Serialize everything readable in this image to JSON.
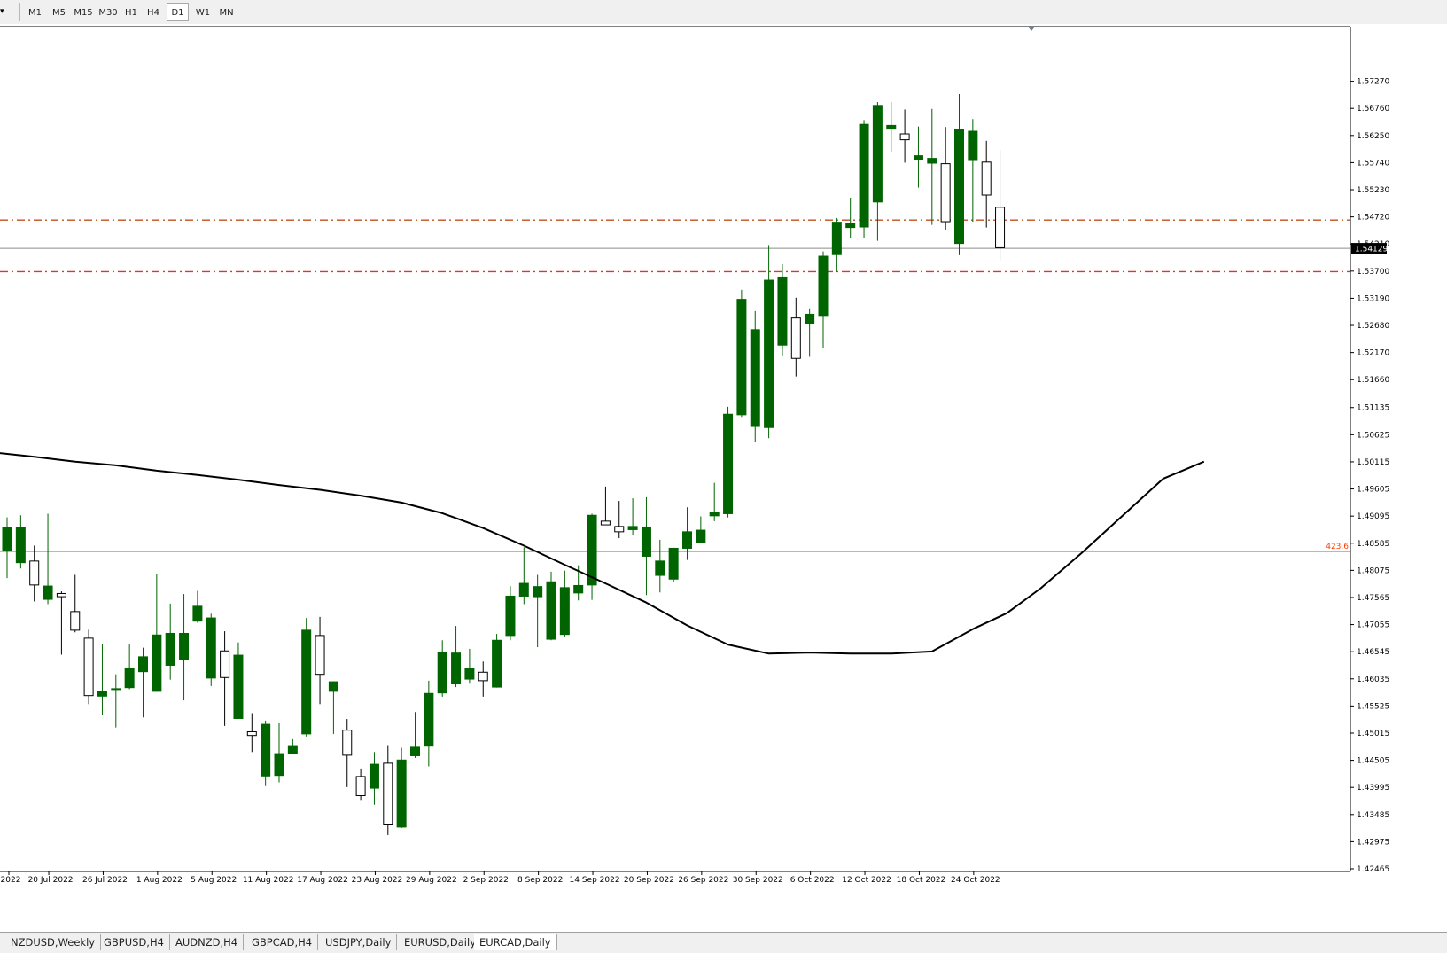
{
  "toolbar": {
    "dropdown_icon": "triangle-down-icon",
    "timeframes": [
      "M1",
      "M5",
      "M15",
      "M30",
      "H1",
      "H4",
      "D1",
      "W1",
      "MN"
    ],
    "active": "D1"
  },
  "chart_data": {
    "type": "candlestick",
    "symbol": "EURCAD",
    "timeframe": "Daily",
    "ylim": [
      1.42465,
      1.5778
    ],
    "y_ticks": [
      "1.57270",
      "1.56760",
      "1.56250",
      "1.55740",
      "1.55230",
      "1.54720",
      "1.54210",
      "1.53700",
      "1.53190",
      "1.52680",
      "1.52170",
      "1.51660",
      "1.51135",
      "1.50625",
      "1.50115",
      "1.49605",
      "1.49095",
      "1.48585",
      "1.48075",
      "1.47565",
      "1.47055",
      "1.46545",
      "1.46035",
      "1.45525",
      "1.45015",
      "1.44505",
      "1.43995",
      "1.43485",
      "1.42975",
      "1.42465"
    ],
    "x_labels": [
      "2022",
      "20 Jul 2022",
      "26 Jul 2022",
      "1 Aug 2022",
      "5 Aug 2022",
      "11 Aug 2022",
      "17 Aug 2022",
      "23 Aug 2022",
      "29 Aug 2022",
      "2 Sep 2022",
      "8 Sep 2022",
      "14 Sep 2022",
      "20 Sep 2022",
      "26 Sep 2022",
      "30 Sep 2022",
      "6 Oct 2022",
      "12 Oct 2022",
      "18 Oct 2022",
      "24 Oct 2022"
    ],
    "current_price": "1.54129",
    "current_price_value": 1.54129,
    "candles": [
      {
        "o": 1.4844,
        "h": 1.4907,
        "l": 1.4793,
        "c": 1.4888
      },
      {
        "o": 1.4822,
        "h": 1.4911,
        "l": 1.4811,
        "c": 1.4888
      },
      {
        "o": 1.4825,
        "h": 1.4854,
        "l": 1.4749,
        "c": 1.478
      },
      {
        "o": 1.4753,
        "h": 1.4914,
        "l": 1.4744,
        "c": 1.4778
      },
      {
        "o": 1.4764,
        "h": 1.4768,
        "l": 1.4649,
        "c": 1.4758
      },
      {
        "o": 1.473,
        "h": 1.4799,
        "l": 1.4691,
        "c": 1.4695
      },
      {
        "o": 1.468,
        "h": 1.4696,
        "l": 1.4556,
        "c": 1.4572
      },
      {
        "o": 1.4571,
        "h": 1.4669,
        "l": 1.4535,
        "c": 1.458
      },
      {
        "o": 1.4585,
        "h": 1.4612,
        "l": 1.4512,
        "c": 1.4585
      },
      {
        "o": 1.4587,
        "h": 1.4668,
        "l": 1.4584,
        "c": 1.4624
      },
      {
        "o": 1.4617,
        "h": 1.4662,
        "l": 1.4531,
        "c": 1.4645
      },
      {
        "o": 1.458,
        "h": 1.4801,
        "l": 1.4579,
        "c": 1.4686
      },
      {
        "o": 1.4629,
        "h": 1.4745,
        "l": 1.4602,
        "c": 1.4689
      },
      {
        "o": 1.4639,
        "h": 1.4763,
        "l": 1.4563,
        "c": 1.4689
      },
      {
        "o": 1.4712,
        "h": 1.4769,
        "l": 1.4709,
        "c": 1.474
      },
      {
        "o": 1.4605,
        "h": 1.4726,
        "l": 1.459,
        "c": 1.4718
      },
      {
        "o": 1.4656,
        "h": 1.4693,
        "l": 1.4515,
        "c": 1.4606
      },
      {
        "o": 1.4529,
        "h": 1.4672,
        "l": 1.4528,
        "c": 1.4648
      },
      {
        "o": 1.4504,
        "h": 1.4539,
        "l": 1.4466,
        "c": 1.4497
      },
      {
        "o": 1.4421,
        "h": 1.4525,
        "l": 1.4402,
        "c": 1.4518
      },
      {
        "o": 1.4422,
        "h": 1.4521,
        "l": 1.4409,
        "c": 1.4463
      },
      {
        "o": 1.4463,
        "h": 1.449,
        "l": 1.4463,
        "c": 1.4478
      },
      {
        "o": 1.45,
        "h": 1.4718,
        "l": 1.4495,
        "c": 1.4695
      },
      {
        "o": 1.4685,
        "h": 1.472,
        "l": 1.4556,
        "c": 1.4612
      },
      {
        "o": 1.458,
        "h": 1.4599,
        "l": 1.45,
        "c": 1.4598
      },
      {
        "o": 1.4507,
        "h": 1.4528,
        "l": 1.44,
        "c": 1.446
      },
      {
        "o": 1.442,
        "h": 1.4435,
        "l": 1.4376,
        "c": 1.4384
      },
      {
        "o": 1.4398,
        "h": 1.4466,
        "l": 1.4367,
        "c": 1.4443
      },
      {
        "o": 1.4445,
        "h": 1.4479,
        "l": 1.431,
        "c": 1.4329
      },
      {
        "o": 1.4325,
        "h": 1.4474,
        "l": 1.4323,
        "c": 1.4451
      },
      {
        "o": 1.4459,
        "h": 1.4541,
        "l": 1.4455,
        "c": 1.4475
      },
      {
        "o": 1.4477,
        "h": 1.46,
        "l": 1.4439,
        "c": 1.4576
      },
      {
        "o": 1.4577,
        "h": 1.4676,
        "l": 1.457,
        "c": 1.4654
      },
      {
        "o": 1.4595,
        "h": 1.4703,
        "l": 1.4588,
        "c": 1.4652
      },
      {
        "o": 1.4603,
        "h": 1.466,
        "l": 1.4596,
        "c": 1.4623
      },
      {
        "o": 1.4616,
        "h": 1.4636,
        "l": 1.457,
        "c": 1.46
      },
      {
        "o": 1.4588,
        "h": 1.4688,
        "l": 1.4587,
        "c": 1.4676
      },
      {
        "o": 1.4685,
        "h": 1.4778,
        "l": 1.4676,
        "c": 1.4759
      },
      {
        "o": 1.4759,
        "h": 1.4851,
        "l": 1.4744,
        "c": 1.4783
      },
      {
        "o": 1.4758,
        "h": 1.4799,
        "l": 1.4663,
        "c": 1.4777
      },
      {
        "o": 1.4678,
        "h": 1.4805,
        "l": 1.4676,
        "c": 1.4786
      },
      {
        "o": 1.4687,
        "h": 1.4807,
        "l": 1.4682,
        "c": 1.4775
      },
      {
        "o": 1.4765,
        "h": 1.4817,
        "l": 1.4751,
        "c": 1.4779
      },
      {
        "o": 1.478,
        "h": 1.4914,
        "l": 1.4752,
        "c": 1.4911
      },
      {
        "o": 1.49,
        "h": 1.4965,
        "l": 1.4893,
        "c": 1.4893
      },
      {
        "o": 1.489,
        "h": 1.4938,
        "l": 1.4868,
        "c": 1.488
      },
      {
        "o": 1.4884,
        "h": 1.4943,
        "l": 1.4873,
        "c": 1.489
      },
      {
        "o": 1.4834,
        "h": 1.4945,
        "l": 1.4761,
        "c": 1.4889
      },
      {
        "o": 1.4798,
        "h": 1.4865,
        "l": 1.4766,
        "c": 1.4825
      },
      {
        "o": 1.4791,
        "h": 1.485,
        "l": 1.4785,
        "c": 1.4849
      },
      {
        "o": 1.4849,
        "h": 1.4926,
        "l": 1.4827,
        "c": 1.488
      },
      {
        "o": 1.486,
        "h": 1.4909,
        "l": 1.4859,
        "c": 1.4883
      },
      {
        "o": 1.491,
        "h": 1.4972,
        "l": 1.49,
        "c": 1.4917
      },
      {
        "o": 1.4914,
        "h": 1.5115,
        "l": 1.4907,
        "c": 1.5101
      },
      {
        "o": 1.51,
        "h": 1.5335,
        "l": 1.5096,
        "c": 1.5317
      },
      {
        "o": 1.5078,
        "h": 1.5295,
        "l": 1.5048,
        "c": 1.526
      },
      {
        "o": 1.5076,
        "h": 1.5419,
        "l": 1.5056,
        "c": 1.5353
      },
      {
        "o": 1.5231,
        "h": 1.5383,
        "l": 1.521,
        "c": 1.5359
      },
      {
        "o": 1.5282,
        "h": 1.532,
        "l": 1.5172,
        "c": 1.5206
      },
      {
        "o": 1.5271,
        "h": 1.53,
        "l": 1.5209,
        "c": 1.5289
      },
      {
        "o": 1.5285,
        "h": 1.5407,
        "l": 1.5226,
        "c": 1.5398
      },
      {
        "o": 1.5401,
        "h": 1.547,
        "l": 1.5369,
        "c": 1.5462
      },
      {
        "o": 1.5452,
        "h": 1.5508,
        "l": 1.5432,
        "c": 1.546
      },
      {
        "o": 1.5453,
        "h": 1.5654,
        "l": 1.5432,
        "c": 1.5646
      },
      {
        "o": 1.55,
        "h": 1.5688,
        "l": 1.5427,
        "c": 1.568
      },
      {
        "o": 1.5637,
        "h": 1.5688,
        "l": 1.5593,
        "c": 1.5644
      },
      {
        "o": 1.5628,
        "h": 1.5674,
        "l": 1.5574,
        "c": 1.5617
      },
      {
        "o": 1.558,
        "h": 1.5642,
        "l": 1.5527,
        "c": 1.5587
      },
      {
        "o": 1.5573,
        "h": 1.5675,
        "l": 1.5457,
        "c": 1.5582
      },
      {
        "o": 1.5572,
        "h": 1.5641,
        "l": 1.5448,
        "c": 1.5463
      },
      {
        "o": 1.5422,
        "h": 1.5703,
        "l": 1.54,
        "c": 1.5636
      },
      {
        "o": 1.5578,
        "h": 1.5656,
        "l": 1.5463,
        "c": 1.5633
      },
      {
        "o": 1.5575,
        "h": 1.5615,
        "l": 1.5452,
        "c": 1.5513
      },
      {
        "o": 1.549,
        "h": 1.5598,
        "l": 1.539,
        "c": 1.5414
      }
    ],
    "moving_average": [
      [
        -1,
        1.5029
      ],
      [
        2,
        1.5021
      ],
      [
        5,
        1.5012
      ],
      [
        8,
        1.5005
      ],
      [
        11,
        1.4995
      ],
      [
        14,
        1.4987
      ],
      [
        17,
        1.4978
      ],
      [
        20,
        1.4968
      ],
      [
        23,
        1.4959
      ],
      [
        26,
        1.4948
      ],
      [
        29,
        1.4935
      ],
      [
        32,
        1.4915
      ],
      [
        35,
        1.4887
      ],
      [
        38,
        1.4854
      ],
      [
        41,
        1.4818
      ],
      [
        44,
        1.4783
      ],
      [
        47,
        1.4747
      ],
      [
        50,
        1.4704
      ],
      [
        53,
        1.4668
      ],
      [
        56,
        1.4651
      ],
      [
        59,
        1.4653
      ],
      [
        62,
        1.4651
      ],
      [
        65,
        1.4651
      ],
      [
        68,
        1.4655
      ],
      [
        71,
        1.4697
      ],
      [
        73.5,
        1.4727
      ],
      [
        76,
        1.4774
      ],
      [
        79,
        1.484
      ],
      [
        82,
        1.491
      ],
      [
        85,
        1.498
      ],
      [
        88,
        1.5012
      ]
    ],
    "horizontal_lines": [
      {
        "value": 1.5466,
        "style": "dash-dot",
        "color": "#c0501e"
      },
      {
        "value": 1.5369,
        "style": "dash-dot",
        "color": "#e03232"
      },
      {
        "value": 1.48435,
        "style": "solid",
        "color": "#ff3c00",
        "label": "423.6"
      }
    ],
    "colors": {
      "bull": "#006400",
      "bear_body": "#ffffff",
      "wick": "#000000",
      "ma": "#000000",
      "grid_axis": "#000000"
    }
  },
  "tabs": [
    {
      "label": "NZDUSD,Weekly"
    },
    {
      "label": "GBPUSD,H4"
    },
    {
      "label": "AUDNZD,H4"
    },
    {
      "label": "GBPCAD,H4"
    },
    {
      "label": "USDJPY,Daily"
    },
    {
      "label": "EURUSD,Daily"
    },
    {
      "label": "EURCAD,Daily",
      "active": true
    }
  ]
}
